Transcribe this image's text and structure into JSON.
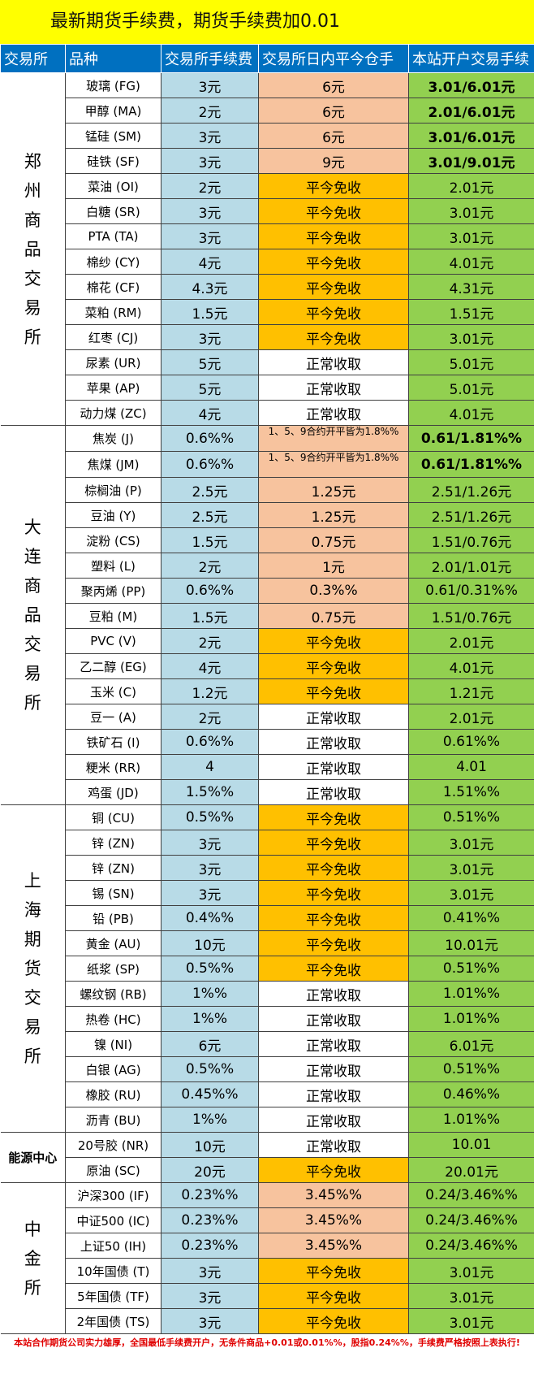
{
  "title": "最新期货手续费，期货手续费加0.01",
  "headers": [
    "交易所",
    "品种",
    "交易所手续费",
    "交易所日内平今仓手",
    "本站开户交易手续"
  ],
  "colors": {
    "header_blue": "#0070c0",
    "title_yellow": "#ffff00",
    "fee_blue": "#b8dbe7",
    "close_salmon": "#f7c39e",
    "close_amber": "#ffc000",
    "site_green": "#92d050",
    "footer_red": "#e00000"
  },
  "groups": [
    {
      "exchange": "郑州商品交易所",
      "rows": [
        {
          "variety": "玻璃 (FG)",
          "fee": "3元",
          "close": "6元",
          "close_style": "salmon",
          "site": "3.01/6.01元",
          "site_bold": true
        },
        {
          "variety": "甲醇 (MA)",
          "fee": "2元",
          "close": "6元",
          "close_style": "salmon",
          "site": "2.01/6.01元",
          "site_bold": true
        },
        {
          "variety": "锰硅 (SM)",
          "fee": "3元",
          "close": "6元",
          "close_style": "salmon",
          "site": "3.01/6.01元",
          "site_bold": true
        },
        {
          "variety": "硅铁 (SF)",
          "fee": "3元",
          "close": "9元",
          "close_style": "salmon",
          "site": "3.01/9.01元",
          "site_bold": true
        },
        {
          "variety": "菜油 (OI)",
          "fee": "2元",
          "close": "平今免收",
          "close_style": "amber",
          "site": "2.01元"
        },
        {
          "variety": "白糖 (SR)",
          "fee": "3元",
          "close": "平今免收",
          "close_style": "amber",
          "site": "3.01元"
        },
        {
          "variety": "PTA (TA)",
          "fee": "3元",
          "close": "平今免收",
          "close_style": "amber",
          "site": "3.01元"
        },
        {
          "variety": "棉纱 (CY)",
          "fee": "4元",
          "close": "平今免收",
          "close_style": "amber",
          "site": "4.01元"
        },
        {
          "variety": "棉花 (CF)",
          "fee": "4.3元",
          "close": "平今免收",
          "close_style": "amber",
          "site": "4.31元"
        },
        {
          "variety": "菜粕 (RM)",
          "fee": "1.5元",
          "close": "平今免收",
          "close_style": "amber",
          "site": "1.51元"
        },
        {
          "variety": "红枣 (CJ)",
          "fee": "3元",
          "close": "平今免收",
          "close_style": "amber",
          "site": "3.01元"
        },
        {
          "variety": "尿素 (UR)",
          "fee": "5元",
          "close": "正常收取",
          "close_style": "white",
          "site": "5.01元"
        },
        {
          "variety": "苹果 (AP)",
          "fee": "5元",
          "close": "正常收取",
          "close_style": "white",
          "site": "5.01元"
        },
        {
          "variety": "动力煤 (ZC)",
          "fee": "4元",
          "close": "正常收取",
          "close_style": "white",
          "site": "4.01元"
        }
      ]
    },
    {
      "exchange": "大连商品交易所",
      "rows": [
        {
          "variety": "焦炭 (J)",
          "fee": "0.6%%",
          "close": "1、5、9合约开平皆为1.8%%",
          "close_style": "salmon note",
          "site": "0.61/1.81%%",
          "site_bold": true
        },
        {
          "variety": "焦煤 (JM)",
          "fee": "0.6%%",
          "close": "1、5、9合约开平皆为1.8%%",
          "close_style": "salmon note",
          "site": "0.61/1.81%%",
          "site_bold": true
        },
        {
          "variety": "棕榈油 (P)",
          "fee": "2.5元",
          "close": "1.25元",
          "close_style": "salmon",
          "site": "2.51/1.26元"
        },
        {
          "variety": "豆油 (Y)",
          "fee": "2.5元",
          "close": "1.25元",
          "close_style": "salmon",
          "site": "2.51/1.26元"
        },
        {
          "variety": "淀粉 (CS)",
          "fee": "1.5元",
          "close": "0.75元",
          "close_style": "salmon",
          "site": "1.51/0.76元"
        },
        {
          "variety": "塑料 (L)",
          "fee": "2元",
          "close": "1元",
          "close_style": "salmon",
          "site": "2.01/1.01元"
        },
        {
          "variety": "聚丙烯 (PP)",
          "fee": "0.6%%",
          "close": "0.3%%",
          "close_style": "salmon",
          "site": "0.61/0.31%%"
        },
        {
          "variety": "豆粕 (M)",
          "fee": "1.5元",
          "close": "0.75元",
          "close_style": "salmon",
          "site": "1.51/0.76元"
        },
        {
          "variety": "PVC (V)",
          "fee": "2元",
          "close": "平今免收",
          "close_style": "amber",
          "site": "2.01元"
        },
        {
          "variety": "乙二醇 (EG)",
          "fee": "4元",
          "close": "平今免收",
          "close_style": "amber",
          "site": "4.01元"
        },
        {
          "variety": "玉米 (C)",
          "fee": "1.2元",
          "close": "平今免收",
          "close_style": "amber",
          "site": "1.21元"
        },
        {
          "variety": "豆一 (A)",
          "fee": "2元",
          "close": "正常收取",
          "close_style": "white",
          "site": "2.01元"
        },
        {
          "variety": "铁矿石 (I)",
          "fee": "0.6%%",
          "close": "正常收取",
          "close_style": "white",
          "site": "0.61%%"
        },
        {
          "variety": "粳米 (RR)",
          "fee": "4",
          "close": "正常收取",
          "close_style": "white",
          "site": "4.01"
        },
        {
          "variety": "鸡蛋 (JD)",
          "fee": "1.5%%",
          "close": "正常收取",
          "close_style": "white",
          "site": "1.51%%"
        }
      ]
    },
    {
      "exchange": "上海期货交易所",
      "rows": [
        {
          "variety": "铜 (CU)",
          "fee": "0.5%%",
          "close": "平今免收",
          "close_style": "amber",
          "site": "0.51%%"
        },
        {
          "variety": "锌 (ZN)",
          "fee": "3元",
          "close": "平今免收",
          "close_style": "amber",
          "site": "3.01元"
        },
        {
          "variety": "锌 (ZN)",
          "fee": "3元",
          "close": "平今免收",
          "close_style": "amber",
          "site": "3.01元"
        },
        {
          "variety": "锡 (SN)",
          "fee": "3元",
          "close": "平今免收",
          "close_style": "amber",
          "site": "3.01元"
        },
        {
          "variety": "铅 (PB)",
          "fee": "0.4%%",
          "close": "平今免收",
          "close_style": "amber",
          "site": "0.41%%"
        },
        {
          "variety": "黄金 (AU)",
          "fee": "10元",
          "close": "平今免收",
          "close_style": "amber",
          "site": "10.01元"
        },
        {
          "variety": "纸浆 (SP)",
          "fee": "0.5%%",
          "close": "平今免收",
          "close_style": "amber",
          "site": "0.51%%"
        },
        {
          "variety": "螺纹钢 (RB)",
          "fee": "1%%",
          "close": "正常收取",
          "close_style": "white",
          "site": "1.01%%"
        },
        {
          "variety": "热卷 (HC)",
          "fee": "1%%",
          "close": "正常收取",
          "close_style": "white",
          "site": "1.01%%"
        },
        {
          "variety": "镍 (NI)",
          "fee": "6元",
          "close": "正常收取",
          "close_style": "white",
          "site": "6.01元"
        },
        {
          "variety": "白银 (AG)",
          "fee": "0.5%%",
          "close": "正常收取",
          "close_style": "white",
          "site": "0.51%%"
        },
        {
          "variety": "橡胶 (RU)",
          "fee": "0.45%%",
          "close": "正常收取",
          "close_style": "white",
          "site": "0.46%%"
        },
        {
          "variety": "沥青 (BU)",
          "fee": "1%%",
          "close": "正常收取",
          "close_style": "white",
          "site": "1.01%%"
        }
      ]
    },
    {
      "exchange": "能源中心",
      "small": true,
      "rows": [
        {
          "variety": "20号胶 (NR)",
          "fee": "10元",
          "close": "正常收取",
          "close_style": "white",
          "site": "10.01"
        },
        {
          "variety": "原油 (SC)",
          "fee": "20元",
          "close": "平今免收",
          "close_style": "amber",
          "site": "20.01元"
        }
      ]
    },
    {
      "exchange": "中金所",
      "rows": [
        {
          "variety": "沪深300 (IF)",
          "fee": "0.23%%",
          "close": "3.45%%",
          "close_style": "salmon",
          "site": "0.24/3.46%%"
        },
        {
          "variety": "中证500 (IC)",
          "fee": "0.23%%",
          "close": "3.45%%",
          "close_style": "salmon",
          "site": "0.24/3.46%%"
        },
        {
          "variety": "上证50 (IH)",
          "fee": "0.23%%",
          "close": "3.45%%",
          "close_style": "salmon",
          "site": "0.24/3.46%%"
        },
        {
          "variety": "10年国债 (T)",
          "fee": "3元",
          "close": "平今免收",
          "close_style": "amber",
          "site": "3.01元"
        },
        {
          "variety": "5年国债 (TF)",
          "fee": "3元",
          "close": "平今免收",
          "close_style": "amber",
          "site": "3.01元"
        },
        {
          "variety": "2年国债 (TS)",
          "fee": "3元",
          "close": "平今免收",
          "close_style": "amber",
          "site": "3.01元"
        }
      ]
    }
  ],
  "footer": "本站合作期货公司实力雄厚，全国最低手续费开户，无条件商品+0.01或0.01%%，股指0.24%%，手续费严格按照上表执行!"
}
